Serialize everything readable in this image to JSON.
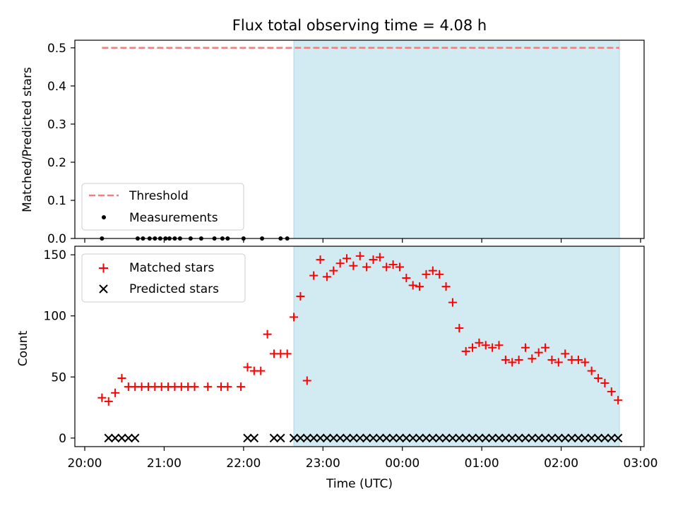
{
  "chart_data": [
    {
      "type": "scatter",
      "title": "Flux total observing time = 4.08 h",
      "xlabel": "",
      "ylabel": "Matched/Predicted stars",
      "xlim": [
        "20:00",
        "03:00"
      ],
      "ylim": [
        0,
        0.52
      ],
      "yticks": [
        "0.0",
        "0.1",
        "0.2",
        "0.3",
        "0.4",
        "0.5"
      ],
      "shaded_region": {
        "x_start": "22:38",
        "x_end": "02:44",
        "color": "#add8e6"
      },
      "threshold_line": {
        "name": "Threshold",
        "y": 0.5,
        "x_start": "20:13",
        "x_end": "02:44",
        "color": "#f08080"
      },
      "series": [
        {
          "name": "Measurements",
          "x": [
            "20:13",
            "20:40",
            "20:44",
            "20:49",
            "20:53",
            "20:57",
            "21:01",
            "21:04",
            "21:08",
            "21:12",
            "21:20",
            "21:28",
            "21:38",
            "21:44",
            "21:48",
            "22:00",
            "22:14",
            "22:28",
            "22:33"
          ],
          "values": [
            0,
            0,
            0,
            0,
            0,
            0,
            0,
            0,
            0,
            0,
            0,
            0,
            0,
            0,
            0,
            0,
            0,
            0,
            0
          ]
        }
      ],
      "legend": [
        "Threshold",
        "Measurements"
      ],
      "legend_position": "lower-left"
    },
    {
      "type": "scatter",
      "title": "",
      "xlabel": "Time (UTC)",
      "ylabel": "Count",
      "xlim": [
        "20:00",
        "03:00"
      ],
      "xticks": [
        "20:00",
        "21:00",
        "22:00",
        "23:00",
        "00:00",
        "01:00",
        "02:00",
        "03:00"
      ],
      "ylim": [
        -7,
        157
      ],
      "yticks": [
        "0",
        "50",
        "100",
        "150"
      ],
      "shaded_region": {
        "x_start": "22:38",
        "x_end": "02:44",
        "color": "#add8e6"
      },
      "series": [
        {
          "name": "Matched stars",
          "marker": "+",
          "color": "#ff0000",
          "x": [
            "20:13",
            "20:18",
            "20:23",
            "20:28",
            "20:33",
            "20:38",
            "20:43",
            "20:48",
            "20:53",
            "20:58",
            "21:03",
            "21:08",
            "21:13",
            "21:18",
            "21:23",
            "21:33",
            "21:43",
            "21:48",
            "21:58",
            "22:03",
            "22:08",
            "22:13",
            "22:18",
            "22:23",
            "22:28",
            "22:33",
            "22:38",
            "22:43",
            "22:48",
            "22:53",
            "22:58",
            "23:03",
            "23:08",
            "23:13",
            "23:18",
            "23:23",
            "23:28",
            "23:33",
            "23:38",
            "23:43",
            "23:48",
            "23:53",
            "23:58",
            "00:03",
            "00:08",
            "00:13",
            "00:18",
            "00:23",
            "00:28",
            "00:33",
            "00:38",
            "00:43",
            "00:48",
            "00:53",
            "00:58",
            "01:03",
            "01:08",
            "01:13",
            "01:18",
            "01:23",
            "01:28",
            "01:33",
            "01:38",
            "01:43",
            "01:48",
            "01:53",
            "01:58",
            "02:03",
            "02:08",
            "02:13",
            "02:18",
            "02:23",
            "02:28",
            "02:33",
            "02:38",
            "02:43"
          ],
          "values": [
            33,
            30,
            37,
            49,
            42,
            42,
            42,
            42,
            42,
            42,
            42,
            42,
            42,
            42,
            42,
            42,
            42,
            42,
            42,
            58,
            55,
            55,
            85,
            69,
            69,
            69,
            99,
            116,
            47,
            133,
            146,
            132,
            137,
            143,
            147,
            141,
            149,
            140,
            146,
            148,
            140,
            142,
            140,
            131,
            125,
            124,
            134,
            137,
            134,
            124,
            111,
            90,
            71,
            74,
            78,
            76,
            74,
            76,
            64,
            62,
            64,
            74,
            65,
            70,
            74,
            64,
            62,
            69,
            64,
            64,
            62,
            55,
            49,
            45,
            38,
            31
          ]
        },
        {
          "name": "Predicted stars",
          "marker": "x",
          "color": "#000000",
          "x": [
            "20:18",
            "20:23",
            "20:28",
            "20:33",
            "20:38",
            "22:03",
            "22:08",
            "22:23",
            "22:28",
            "22:38",
            "22:43",
            "22:48",
            "22:53",
            "22:58",
            "23:03",
            "23:08",
            "23:13",
            "23:18",
            "23:23",
            "23:28",
            "23:33",
            "23:38",
            "23:43",
            "23:48",
            "23:53",
            "23:58",
            "00:03",
            "00:08",
            "00:13",
            "00:18",
            "00:23",
            "00:28",
            "00:33",
            "00:38",
            "00:43",
            "00:48",
            "00:53",
            "00:58",
            "01:03",
            "01:08",
            "01:13",
            "01:18",
            "01:23",
            "01:28",
            "01:33",
            "01:38",
            "01:43",
            "01:48",
            "01:53",
            "01:58",
            "02:03",
            "02:08",
            "02:13",
            "02:18",
            "02:23",
            "02:28",
            "02:33",
            "02:38",
            "02:43"
          ],
          "values": [
            0,
            0,
            0,
            0,
            0,
            0,
            0,
            0,
            0,
            0,
            0,
            0,
            0,
            0,
            0,
            0,
            0,
            0,
            0,
            0,
            0,
            0,
            0,
            0,
            0,
            0,
            0,
            0,
            0,
            0,
            0,
            0,
            0,
            0,
            0,
            0,
            0,
            0,
            0,
            0,
            0,
            0,
            0,
            0,
            0,
            0,
            0,
            0,
            0,
            0,
            0,
            0,
            0,
            0,
            0,
            0,
            0,
            0,
            0
          ]
        }
      ],
      "legend": [
        "Matched stars",
        "Predicted stars"
      ],
      "legend_position": "upper-left"
    }
  ]
}
